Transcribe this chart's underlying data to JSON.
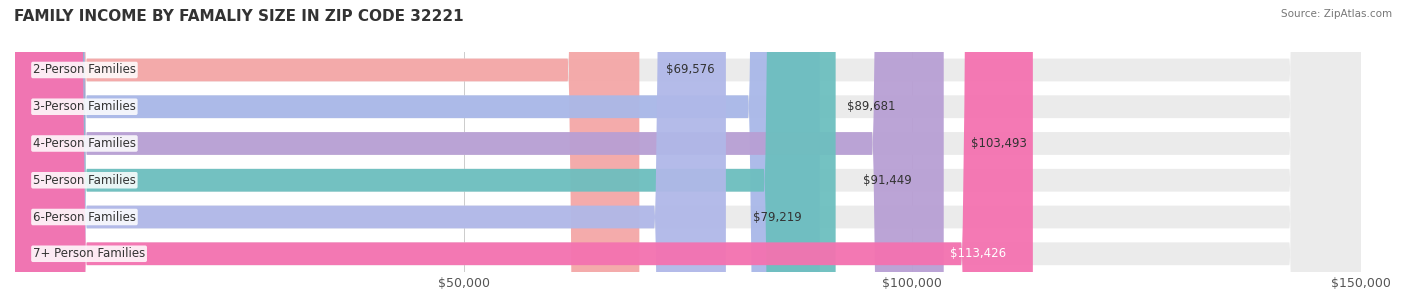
{
  "title": "FAMILY INCOME BY FAMALIY SIZE IN ZIP CODE 32221",
  "source": "Source: ZipAtlas.com",
  "categories": [
    "2-Person Families",
    "3-Person Families",
    "4-Person Families",
    "5-Person Families",
    "6-Person Families",
    "7+ Person Families"
  ],
  "values": [
    69576,
    89681,
    103493,
    91449,
    79219,
    113426
  ],
  "labels": [
    "$69,576",
    "$89,681",
    "$103,493",
    "$91,449",
    "$79,219",
    "$113,426"
  ],
  "bar_colors": [
    "#f4a7a7",
    "#a9b8e8",
    "#b89fd4",
    "#6dbfbf",
    "#b0b8e8",
    "#f472b0"
  ],
  "bar_bg_color": "#f0f0f0",
  "background_color": "#ffffff",
  "xlim": [
    0,
    150000
  ],
  "xticks": [
    0,
    50000,
    100000,
    150000
  ],
  "xtick_labels": [
    "",
    "$50,000",
    "$100,000",
    "$150,000"
  ],
  "title_fontsize": 11,
  "label_fontsize": 8.5,
  "tick_fontsize": 9,
  "bar_height": 0.62,
  "label_inside_last": true
}
